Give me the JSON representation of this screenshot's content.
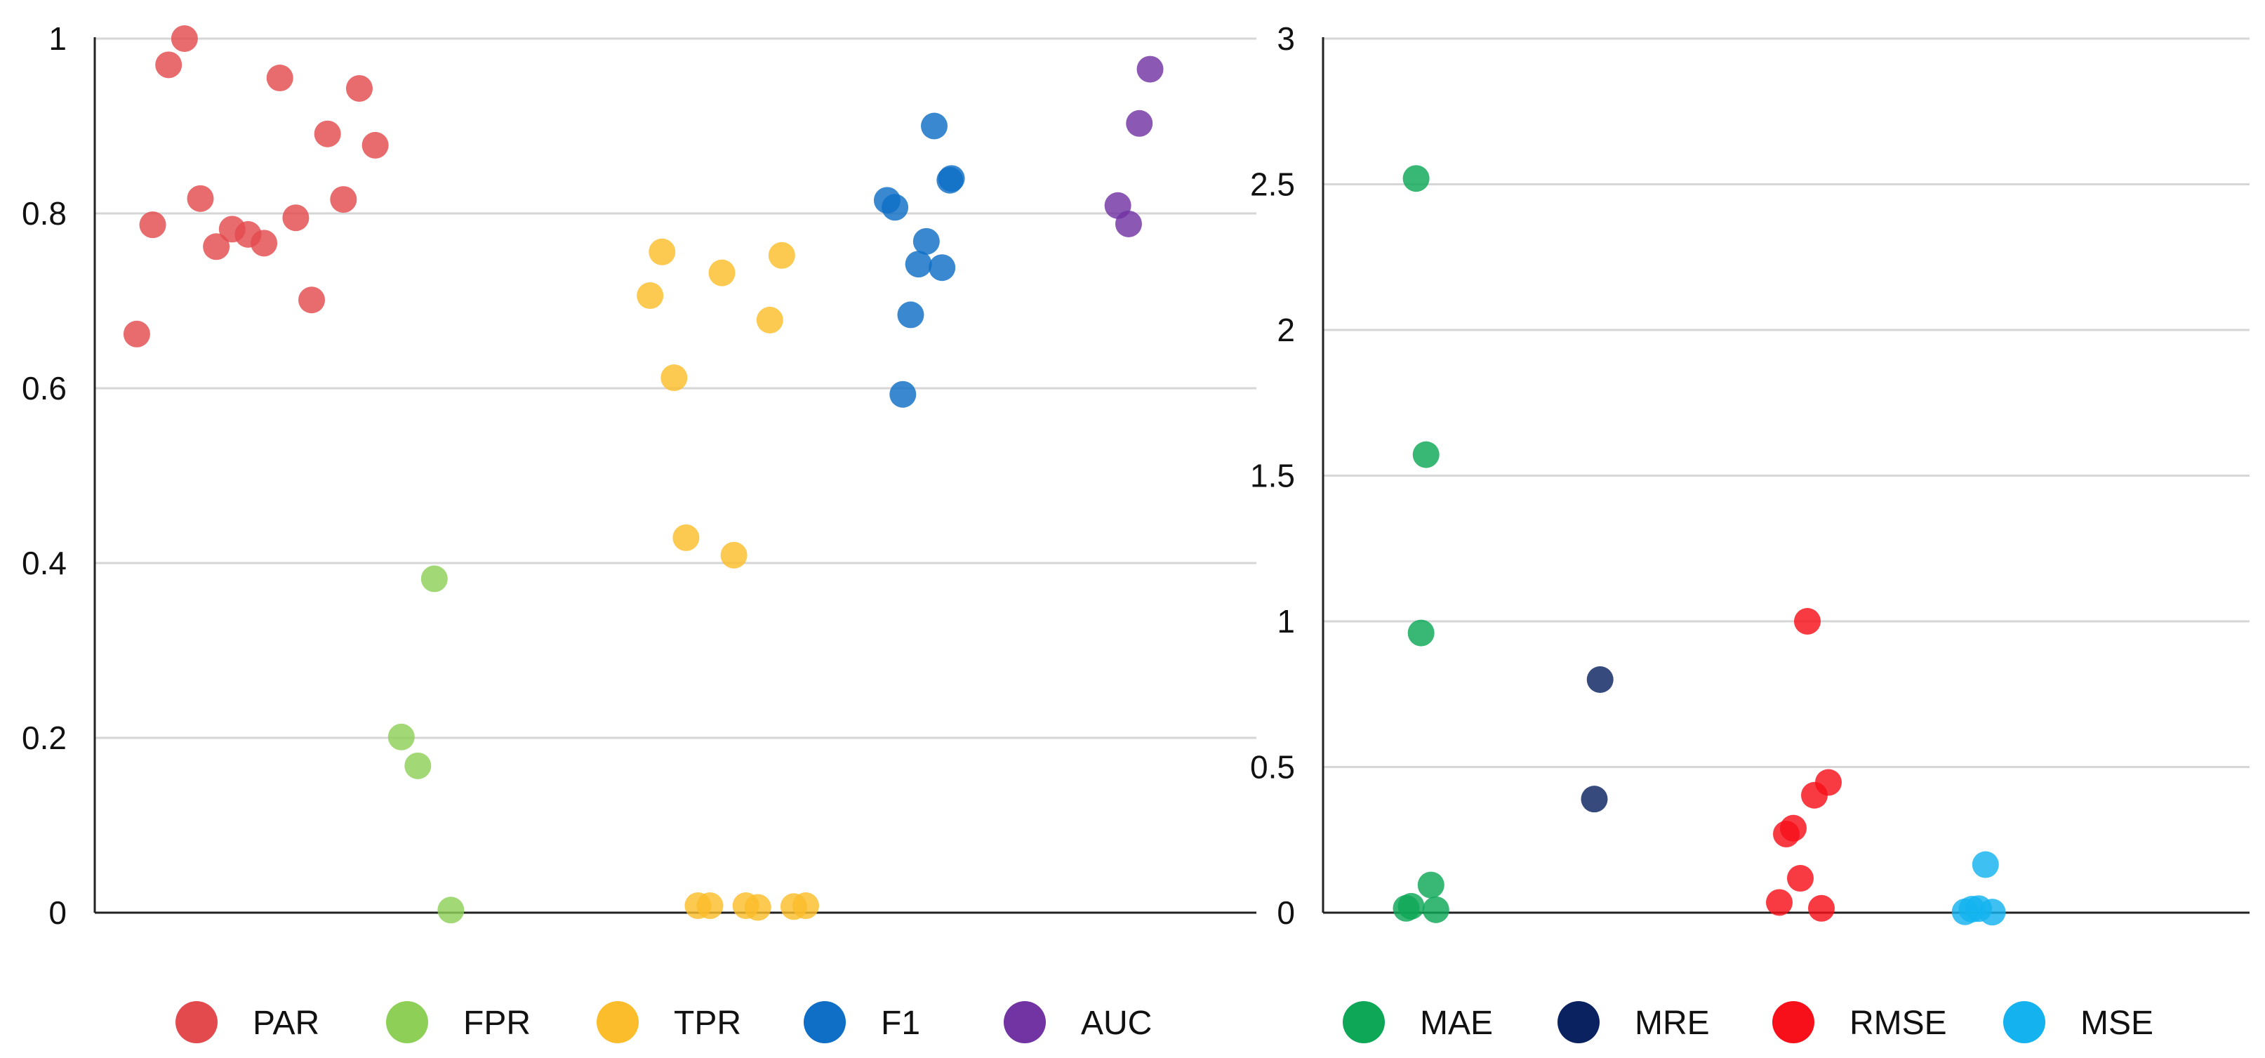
{
  "chart_data": [
    {
      "type": "scatter",
      "title": "",
      "xlabel": "",
      "ylabel": "",
      "ylim": [
        0,
        1
      ],
      "yticks": [
        0,
        0.2,
        0.4,
        0.6,
        0.8,
        1
      ],
      "ytick_labels": [
        "0",
        "0.2",
        "0.4",
        "0.6",
        "0.8",
        "1"
      ],
      "grid": true,
      "legend_position": "bottom",
      "series": [
        {
          "name": "PAR",
          "color": "#e34a4d",
          "values": [
            0.662,
            0.787,
            0.97,
            1.0,
            0.817,
            0.762,
            0.782,
            0.776,
            0.766,
            0.955,
            0.795,
            0.701,
            0.891,
            0.816,
            0.943,
            0.878
          ],
          "jitter": [
            0.11,
            0.21,
            0.31,
            0.41,
            0.51,
            0.61,
            0.71,
            0.81,
            0.91,
            1.01,
            1.11,
            1.21,
            1.31,
            1.41,
            1.51,
            1.61
          ]
        },
        {
          "name": "FPR",
          "color": "#8ed057",
          "values": [
            0.201,
            0.168,
            0.382,
            0.003
          ],
          "jitter": [
            0.1,
            0.3,
            0.5,
            0.7
          ]
        },
        {
          "name": "TPR",
          "color": "#fbbd2b",
          "values": [
            0.706,
            0.756,
            0.612,
            0.429,
            0.008,
            0.008,
            0.732,
            0.409,
            0.008,
            0.006,
            0.678,
            0.752,
            0.007,
            0.008
          ],
          "jitter": [
            0.095,
            0.195,
            0.295,
            0.395,
            0.495,
            0.595,
            0.695,
            0.795,
            0.895,
            0.995,
            1.095,
            1.195,
            1.295,
            1.395
          ]
        },
        {
          "name": "F1",
          "color": "#0f6fc6",
          "values": [
            0.815,
            0.807,
            0.593,
            0.684,
            0.742,
            0.768,
            0.9,
            0.738,
            0.838,
            0.84
          ],
          "jitter": [
            0.08,
            0.18,
            0.28,
            0.38,
            0.48,
            0.58,
            0.68,
            0.78,
            0.88,
            0.9
          ]
        },
        {
          "name": "AUC",
          "color": "#7233a3",
          "values": [
            0.809,
            0.788,
            0.903,
            0.965
          ],
          "jitter": [
            0.1,
            0.3,
            0.5,
            0.7
          ]
        }
      ]
    },
    {
      "type": "scatter",
      "title": "",
      "xlabel": "",
      "ylabel": "",
      "ylim": [
        0,
        3
      ],
      "yticks": [
        0,
        0.5,
        1,
        1.5,
        2,
        2.5,
        3
      ],
      "ytick_labels": [
        "0",
        "0.5",
        "1",
        "1.5",
        "2",
        "2.5",
        "3"
      ],
      "grid": true,
      "legend_position": "bottom",
      "series": [
        {
          "name": "MAE",
          "color": "#0ea757",
          "values": [
            0.015,
            0.022,
            2.52,
            0.96,
            1.572,
            0.095,
            0.01
          ],
          "jitter": [
            0.12,
            0.22,
            0.32,
            0.42,
            0.52,
            0.62,
            0.72
          ]
        },
        {
          "name": "MRE",
          "color": "#0b2260",
          "values": [
            0.39,
            0.8
          ],
          "jitter": [
            0.4,
            0.6
          ]
        },
        {
          "name": "RMSE",
          "color": "#f7101a",
          "values": [
            0.035,
            0.27,
            0.29,
            0.118,
            1.0,
            0.403,
            0.015,
            0.447
          ],
          "jitter": [
            0.15,
            0.25,
            0.35,
            0.45,
            0.55,
            0.65,
            0.75,
            0.85
          ]
        },
        {
          "name": "MSE",
          "color": "#14b3ef",
          "values": [
            0.003,
            0.012,
            0.014,
            0.165,
            0.002
          ],
          "jitter": [
            0.15,
            0.3,
            0.45,
            0.6,
            0.75
          ]
        }
      ]
    }
  ]
}
